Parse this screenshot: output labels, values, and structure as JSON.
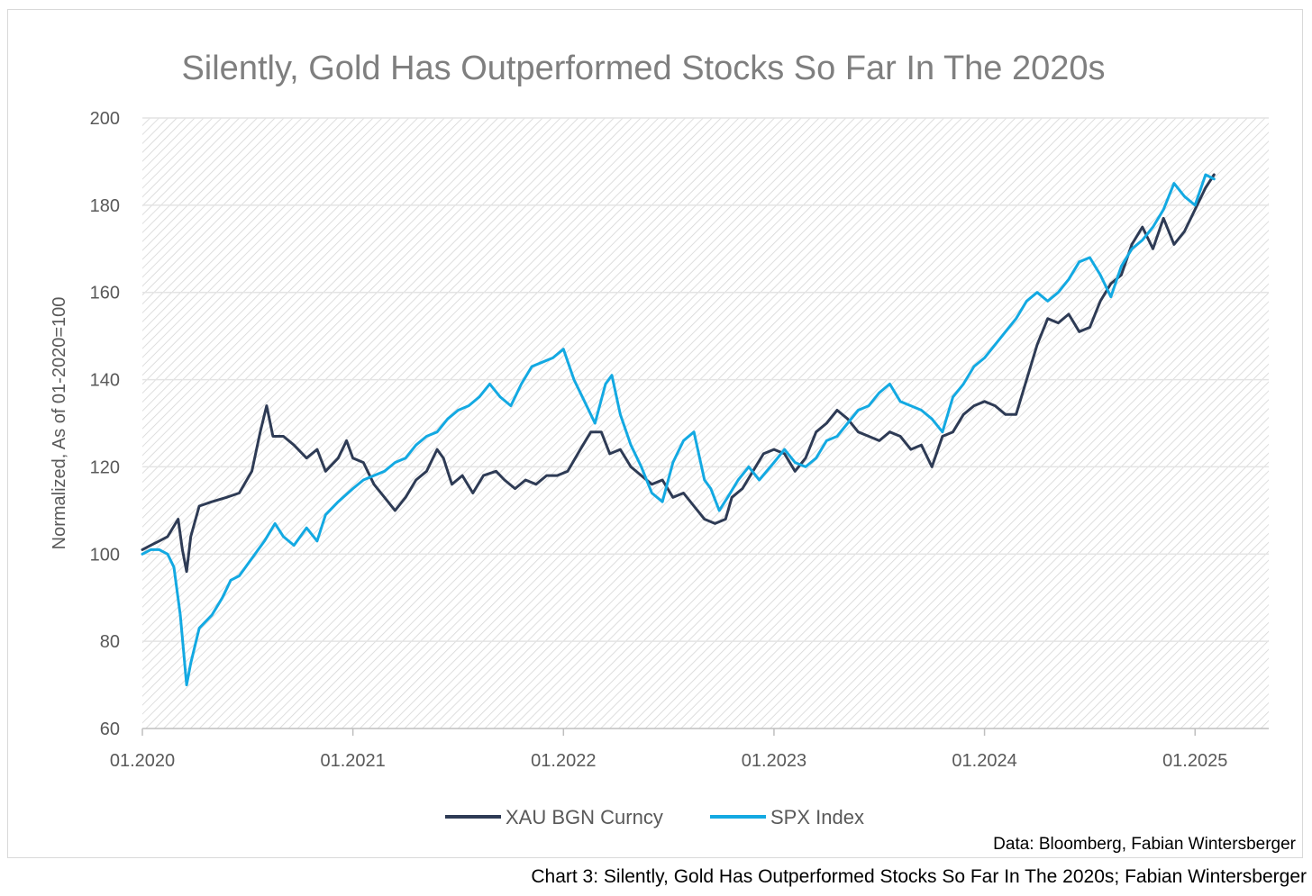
{
  "chart_data": {
    "type": "line",
    "title": "Silently, Gold Has Outperformed Stocks So Far In The 2020s",
    "ylabel": "Normalized, As of 01-2020=100",
    "xlabel": "",
    "ylim": [
      60,
      200
    ],
    "yticks": [
      "60",
      "80",
      "100",
      "120",
      "140",
      "160",
      "180",
      "200"
    ],
    "xlim": [
      2020.0,
      2025.35
    ],
    "xticks": [
      {
        "value": 2020,
        "label": "01.2020"
      },
      {
        "value": 2021,
        "label": "01.2021"
      },
      {
        "value": 2022,
        "label": "01.2022"
      },
      {
        "value": 2023,
        "label": "01.2023"
      },
      {
        "value": 2024,
        "label": "01.2024"
      },
      {
        "value": 2025,
        "label": "01.2025"
      }
    ],
    "grid": true,
    "legend_position": "bottom",
    "source": "Data: Bloomberg, Fabian Wintersberger",
    "series": [
      {
        "name": "XAU BGN Curncy",
        "color": "#2e3b55",
        "points": [
          [
            2020.0,
            101
          ],
          [
            2020.04,
            102
          ],
          [
            2020.08,
            103
          ],
          [
            2020.12,
            104
          ],
          [
            2020.17,
            108
          ],
          [
            2020.19,
            101
          ],
          [
            2020.21,
            96
          ],
          [
            2020.23,
            104
          ],
          [
            2020.27,
            111
          ],
          [
            2020.33,
            112
          ],
          [
            2020.4,
            113
          ],
          [
            2020.46,
            114
          ],
          [
            2020.52,
            119
          ],
          [
            2020.56,
            128
          ],
          [
            2020.59,
            134
          ],
          [
            2020.62,
            127
          ],
          [
            2020.67,
            127
          ],
          [
            2020.72,
            125
          ],
          [
            2020.78,
            122
          ],
          [
            2020.83,
            124
          ],
          [
            2020.87,
            119
          ],
          [
            2020.93,
            122
          ],
          [
            2020.97,
            126
          ],
          [
            2021.0,
            122
          ],
          [
            2021.05,
            121
          ],
          [
            2021.1,
            116
          ],
          [
            2021.15,
            113
          ],
          [
            2021.2,
            110
          ],
          [
            2021.25,
            113
          ],
          [
            2021.3,
            117
          ],
          [
            2021.35,
            119
          ],
          [
            2021.4,
            124
          ],
          [
            2021.43,
            122
          ],
          [
            2021.47,
            116
          ],
          [
            2021.52,
            118
          ],
          [
            2021.57,
            114
          ],
          [
            2021.62,
            118
          ],
          [
            2021.68,
            119
          ],
          [
            2021.72,
            117
          ],
          [
            2021.77,
            115
          ],
          [
            2021.82,
            117
          ],
          [
            2021.87,
            116
          ],
          [
            2021.92,
            118
          ],
          [
            2021.97,
            118
          ],
          [
            2022.02,
            119
          ],
          [
            2022.08,
            124
          ],
          [
            2022.13,
            128
          ],
          [
            2022.18,
            128
          ],
          [
            2022.22,
            123
          ],
          [
            2022.27,
            124
          ],
          [
            2022.32,
            120
          ],
          [
            2022.37,
            118
          ],
          [
            2022.42,
            116
          ],
          [
            2022.47,
            117
          ],
          [
            2022.52,
            113
          ],
          [
            2022.57,
            114
          ],
          [
            2022.62,
            111
          ],
          [
            2022.67,
            108
          ],
          [
            2022.72,
            107
          ],
          [
            2022.77,
            108
          ],
          [
            2022.8,
            113
          ],
          [
            2022.85,
            115
          ],
          [
            2022.9,
            119
          ],
          [
            2022.95,
            123
          ],
          [
            2023.0,
            124
          ],
          [
            2023.05,
            123
          ],
          [
            2023.1,
            119
          ],
          [
            2023.15,
            122
          ],
          [
            2023.2,
            128
          ],
          [
            2023.25,
            130
          ],
          [
            2023.3,
            133
          ],
          [
            2023.35,
            131
          ],
          [
            2023.4,
            128
          ],
          [
            2023.45,
            127
          ],
          [
            2023.5,
            126
          ],
          [
            2023.55,
            128
          ],
          [
            2023.6,
            127
          ],
          [
            2023.65,
            124
          ],
          [
            2023.7,
            125
          ],
          [
            2023.75,
            120
          ],
          [
            2023.8,
            127
          ],
          [
            2023.85,
            128
          ],
          [
            2023.9,
            132
          ],
          [
            2023.95,
            134
          ],
          [
            2024.0,
            135
          ],
          [
            2024.05,
            134
          ],
          [
            2024.1,
            132
          ],
          [
            2024.15,
            132
          ],
          [
            2024.2,
            140
          ],
          [
            2024.25,
            148
          ],
          [
            2024.3,
            154
          ],
          [
            2024.35,
            153
          ],
          [
            2024.4,
            155
          ],
          [
            2024.45,
            151
          ],
          [
            2024.5,
            152
          ],
          [
            2024.55,
            158
          ],
          [
            2024.6,
            162
          ],
          [
            2024.65,
            164
          ],
          [
            2024.7,
            171
          ],
          [
            2024.75,
            175
          ],
          [
            2024.8,
            170
          ],
          [
            2024.85,
            177
          ],
          [
            2024.9,
            171
          ],
          [
            2024.95,
            174
          ],
          [
            2025.0,
            179
          ],
          [
            2025.05,
            184
          ],
          [
            2025.09,
            187
          ]
        ]
      },
      {
        "name": "SPX Index",
        "color": "#13a9e2",
        "points": [
          [
            2020.0,
            100
          ],
          [
            2020.04,
            101
          ],
          [
            2020.08,
            101
          ],
          [
            2020.12,
            100
          ],
          [
            2020.15,
            97
          ],
          [
            2020.18,
            86
          ],
          [
            2020.21,
            70
          ],
          [
            2020.23,
            75
          ],
          [
            2020.27,
            83
          ],
          [
            2020.33,
            86
          ],
          [
            2020.38,
            90
          ],
          [
            2020.42,
            94
          ],
          [
            2020.46,
            95
          ],
          [
            2020.52,
            99
          ],
          [
            2020.58,
            103
          ],
          [
            2020.63,
            107
          ],
          [
            2020.67,
            104
          ],
          [
            2020.72,
            102
          ],
          [
            2020.78,
            106
          ],
          [
            2020.83,
            103
          ],
          [
            2020.87,
            109
          ],
          [
            2020.93,
            112
          ],
          [
            2021.0,
            115
          ],
          [
            2021.05,
            117
          ],
          [
            2021.1,
            118
          ],
          [
            2021.15,
            119
          ],
          [
            2021.2,
            121
          ],
          [
            2021.25,
            122
          ],
          [
            2021.3,
            125
          ],
          [
            2021.35,
            127
          ],
          [
            2021.4,
            128
          ],
          [
            2021.45,
            131
          ],
          [
            2021.5,
            133
          ],
          [
            2021.55,
            134
          ],
          [
            2021.6,
            136
          ],
          [
            2021.65,
            139
          ],
          [
            2021.7,
            136
          ],
          [
            2021.75,
            134
          ],
          [
            2021.8,
            139
          ],
          [
            2021.85,
            143
          ],
          [
            2021.9,
            144
          ],
          [
            2021.95,
            145
          ],
          [
            2022.0,
            147
          ],
          [
            2022.05,
            140
          ],
          [
            2022.1,
            135
          ],
          [
            2022.15,
            130
          ],
          [
            2022.2,
            139
          ],
          [
            2022.23,
            141
          ],
          [
            2022.27,
            132
          ],
          [
            2022.32,
            125
          ],
          [
            2022.37,
            120
          ],
          [
            2022.42,
            114
          ],
          [
            2022.47,
            112
          ],
          [
            2022.52,
            121
          ],
          [
            2022.57,
            126
          ],
          [
            2022.62,
            128
          ],
          [
            2022.67,
            117
          ],
          [
            2022.7,
            115
          ],
          [
            2022.74,
            110
          ],
          [
            2022.78,
            113
          ],
          [
            2022.83,
            117
          ],
          [
            2022.88,
            120
          ],
          [
            2022.93,
            117
          ],
          [
            2023.0,
            121
          ],
          [
            2023.05,
            124
          ],
          [
            2023.1,
            121
          ],
          [
            2023.15,
            120
          ],
          [
            2023.2,
            122
          ],
          [
            2023.25,
            126
          ],
          [
            2023.3,
            127
          ],
          [
            2023.35,
            130
          ],
          [
            2023.4,
            133
          ],
          [
            2023.45,
            134
          ],
          [
            2023.5,
            137
          ],
          [
            2023.55,
            139
          ],
          [
            2023.6,
            135
          ],
          [
            2023.65,
            134
          ],
          [
            2023.7,
            133
          ],
          [
            2023.75,
            131
          ],
          [
            2023.8,
            128
          ],
          [
            2023.85,
            136
          ],
          [
            2023.9,
            139
          ],
          [
            2023.95,
            143
          ],
          [
            2024.0,
            145
          ],
          [
            2024.05,
            148
          ],
          [
            2024.1,
            151
          ],
          [
            2024.15,
            154
          ],
          [
            2024.2,
            158
          ],
          [
            2024.25,
            160
          ],
          [
            2024.3,
            158
          ],
          [
            2024.35,
            160
          ],
          [
            2024.4,
            163
          ],
          [
            2024.45,
            167
          ],
          [
            2024.5,
            168
          ],
          [
            2024.55,
            164
          ],
          [
            2024.6,
            159
          ],
          [
            2024.65,
            166
          ],
          [
            2024.7,
            170
          ],
          [
            2024.75,
            172
          ],
          [
            2024.8,
            175
          ],
          [
            2024.85,
            179
          ],
          [
            2024.9,
            185
          ],
          [
            2024.95,
            182
          ],
          [
            2025.0,
            180
          ],
          [
            2025.05,
            187
          ],
          [
            2025.09,
            186
          ]
        ]
      }
    ]
  },
  "caption": "Chart 3: Silently, Gold Has Outperformed Stocks So Far In The 2020s; Fabian Wintersberger"
}
